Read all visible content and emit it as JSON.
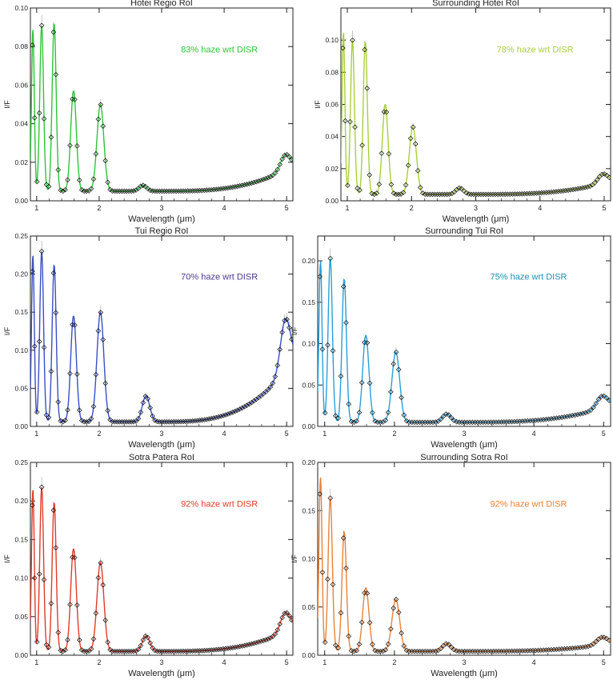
{
  "chart_data": [
    {
      "type": "line",
      "title": "Hotei Regio RoI",
      "annotation": "83% haze wrt DISR",
      "color": "#2fc43a",
      "xlabel": "Wavelength (μm)",
      "ylabel": "I/F",
      "xlim": [
        0.9,
        5.1
      ],
      "ylim": [
        0,
        0.1
      ],
      "xticks": [
        1,
        2,
        3,
        4,
        5
      ],
      "yticks": [
        0.0,
        0.02,
        0.04,
        0.06,
        0.08,
        0.1
      ],
      "ytick_labels": [
        "0.00",
        "0.02",
        "0.04",
        "0.06",
        "0.08",
        "0.10"
      ],
      "baseline": 0.005,
      "continuum_end": 0.018,
      "peaks": [
        {
          "x": 0.94,
          "y": 0.089,
          "w": 0.022
        },
        {
          "x": 1.08,
          "y": 0.091,
          "w": 0.03
        },
        {
          "x": 1.28,
          "y": 0.092,
          "w": 0.032
        },
        {
          "x": 1.59,
          "y": 0.057,
          "w": 0.045
        },
        {
          "x": 2.02,
          "y": 0.05,
          "w": 0.055
        },
        {
          "x": 2.7,
          "y": 0.008,
          "w": 0.06
        },
        {
          "x": 4.98,
          "y": 0.013,
          "w": 0.08
        }
      ]
    },
    {
      "type": "line",
      "title": "Surrounding Hotei RoI",
      "annotation": "78% haze wrt DISR",
      "color": "#a8cf3c",
      "xlabel": "Wavelength (μm)",
      "ylabel": "I/F",
      "xlim": [
        0.9,
        5.1
      ],
      "ylim": [
        0,
        0.12
      ],
      "xticks": [
        1,
        2,
        3,
        4,
        5
      ],
      "yticks": [
        0.0,
        0.02,
        0.04,
        0.06,
        0.08,
        0.1
      ],
      "ytick_labels": [
        "0.00",
        "0.02",
        "0.04",
        "0.06",
        "0.08",
        "0.10"
      ],
      "baseline": 0.004,
      "continuum_end": 0.012,
      "peaks": [
        {
          "x": 0.94,
          "y": 0.105,
          "w": 0.022
        },
        {
          "x": 1.08,
          "y": 0.1,
          "w": 0.03
        },
        {
          "x": 1.28,
          "y": 0.099,
          "w": 0.032
        },
        {
          "x": 1.59,
          "y": 0.06,
          "w": 0.045
        },
        {
          "x": 2.02,
          "y": 0.046,
          "w": 0.055
        },
        {
          "x": 2.75,
          "y": 0.008,
          "w": 0.06
        },
        {
          "x": 4.98,
          "y": 0.01,
          "w": 0.08
        }
      ]
    },
    {
      "type": "line",
      "title": "Tui Regio RoI",
      "annotation": "70% haze wrt DISR",
      "color": "#3a4fc4",
      "annotation_color": "#4a3a8c",
      "xlabel": "Wavelength (μm)",
      "ylabel": "I/F",
      "xlim": [
        0.9,
        5.1
      ],
      "ylim": [
        0,
        0.25
      ],
      "xticks": [
        1,
        2,
        3,
        4,
        5
      ],
      "yticks": [
        0.0,
        0.05,
        0.1,
        0.15,
        0.2,
        0.25
      ],
      "ytick_labels": [
        "0.00",
        "0.05",
        "0.10",
        "0.15",
        "0.20",
        "0.25"
      ],
      "baseline": 0.006,
      "continuum_end": 0.085,
      "peaks": [
        {
          "x": 0.94,
          "y": 0.225,
          "w": 0.022
        },
        {
          "x": 1.08,
          "y": 0.23,
          "w": 0.03
        },
        {
          "x": 1.28,
          "y": 0.212,
          "w": 0.032
        },
        {
          "x": 1.59,
          "y": 0.145,
          "w": 0.045
        },
        {
          "x": 2.02,
          "y": 0.15,
          "w": 0.055
        },
        {
          "x": 2.75,
          "y": 0.04,
          "w": 0.06
        },
        {
          "x": 4.98,
          "y": 0.075,
          "w": 0.08
        }
      ]
    },
    {
      "type": "line",
      "title": "Surrounding Tui RoI",
      "annotation": "75% haze wrt DISR",
      "color": "#2a9fd8",
      "annotation_color": "#1e8fb0",
      "xlabel": "Wavelength (μm)",
      "ylabel": "I/F",
      "xlim": [
        0.9,
        5.1
      ],
      "ylim": [
        0,
        0.23
      ],
      "xticks": [
        1,
        2,
        3,
        4,
        5
      ],
      "yticks": [
        0.0,
        0.05,
        0.1,
        0.15,
        0.2
      ],
      "ytick_labels": [
        "0.00",
        "0.05",
        "0.10",
        "0.15",
        "0.20"
      ],
      "baseline": 0.005,
      "continuum_end": 0.025,
      "peaks": [
        {
          "x": 0.94,
          "y": 0.2,
          "w": 0.022
        },
        {
          "x": 1.08,
          "y": 0.203,
          "w": 0.03
        },
        {
          "x": 1.28,
          "y": 0.178,
          "w": 0.032
        },
        {
          "x": 1.59,
          "y": 0.11,
          "w": 0.045
        },
        {
          "x": 2.02,
          "y": 0.09,
          "w": 0.055
        },
        {
          "x": 2.75,
          "y": 0.015,
          "w": 0.06
        },
        {
          "x": 4.98,
          "y": 0.02,
          "w": 0.08
        }
      ]
    },
    {
      "type": "line",
      "title": "Sotra Patera RoI",
      "annotation": "92% haze wrt DISR",
      "color": "#e03b2a",
      "xlabel": "Wavelength (μm)",
      "ylabel": "I/F",
      "xlim": [
        0.9,
        5.1
      ],
      "ylim": [
        0,
        0.25
      ],
      "xticks": [
        1,
        2,
        3,
        4,
        5
      ],
      "yticks": [
        0.0,
        0.05,
        0.1,
        0.15,
        0.2,
        0.25
      ],
      "ytick_labels": [
        "0.00",
        "0.05",
        "0.10",
        "0.15",
        "0.20",
        "0.25"
      ],
      "baseline": 0.005,
      "continuum_end": 0.035,
      "peaks": [
        {
          "x": 0.94,
          "y": 0.215,
          "w": 0.022
        },
        {
          "x": 1.08,
          "y": 0.218,
          "w": 0.03
        },
        {
          "x": 1.28,
          "y": 0.198,
          "w": 0.032
        },
        {
          "x": 1.59,
          "y": 0.138,
          "w": 0.045
        },
        {
          "x": 2.02,
          "y": 0.12,
          "w": 0.055
        },
        {
          "x": 2.75,
          "y": 0.025,
          "w": 0.06
        },
        {
          "x": 4.98,
          "y": 0.03,
          "w": 0.08
        }
      ]
    },
    {
      "type": "line",
      "title": "Surrounding Sotra RoI",
      "annotation": "92% haze wrt DISR",
      "color": "#e8833a",
      "xlabel": "Wavelength (μm)",
      "ylabel": "I/F",
      "xlim": [
        0.9,
        5.1
      ],
      "ylim": [
        0,
        0.2
      ],
      "xticks": [
        1,
        2,
        3,
        4,
        5
      ],
      "yticks": [
        0.0,
        0.05,
        0.1,
        0.15,
        0.2
      ],
      "ytick_labels": [
        "0.00",
        "0.05",
        "0.10",
        "0.15",
        "0.20"
      ],
      "baseline": 0.004,
      "continuum_end": 0.012,
      "peaks": [
        {
          "x": 0.94,
          "y": 0.185,
          "w": 0.022
        },
        {
          "x": 1.08,
          "y": 0.163,
          "w": 0.03
        },
        {
          "x": 1.28,
          "y": 0.128,
          "w": 0.032
        },
        {
          "x": 1.59,
          "y": 0.07,
          "w": 0.045
        },
        {
          "x": 2.02,
          "y": 0.058,
          "w": 0.055
        },
        {
          "x": 2.75,
          "y": 0.012,
          "w": 0.06
        },
        {
          "x": 4.98,
          "y": 0.012,
          "w": 0.08
        }
      ]
    }
  ]
}
